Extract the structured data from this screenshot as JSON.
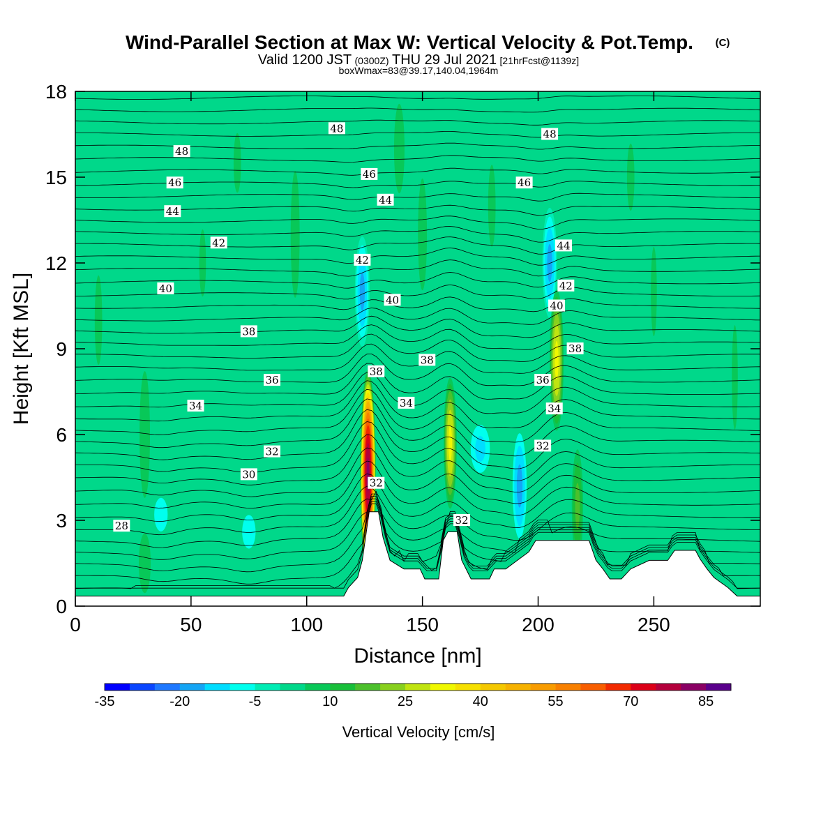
{
  "header": {
    "title": "Wind-Parallel Section at Max W: Vertical Velocity & Pot.Temp.",
    "title_mark": "(C)",
    "valid_a": "Valid 1200 JST",
    "valid_b": "(0300Z)",
    "valid_c": "THU 29 Jul 2021",
    "valid_d": "[21hrFcst@1139z]",
    "box_line": "boxWmax=83@39.17,140.04,1964m"
  },
  "chart_data": {
    "type": "heatmap",
    "xlabel": "Distance [nm]",
    "ylabel": "Height [Kft MSL]",
    "xlim": [
      0,
      296
    ],
    "ylim": [
      0,
      18
    ],
    "x_ticks": [
      0,
      50,
      100,
      150,
      200,
      250
    ],
    "y_ticks": [
      0,
      3,
      6,
      9,
      12,
      15,
      18
    ],
    "x_tick_labels": [
      "0",
      "50",
      "100",
      "150",
      "200",
      "250"
    ],
    "y_tick_labels": [
      "0",
      "3",
      "6",
      "9",
      "12",
      "15",
      "18"
    ],
    "colorbar": {
      "title": "Vertical Velocity [cm/s]",
      "levels_min": -35,
      "levels_step": 5,
      "levels_count": 25,
      "tick_labels": [
        "-35",
        "-20",
        "-5",
        "10",
        "25",
        "40",
        "55",
        "70",
        "85"
      ],
      "colors": [
        "#0000ff",
        "#0a46ff",
        "#1e78ff",
        "#14a5f5",
        "#00ddff",
        "#00ffee",
        "#00ecb4",
        "#00d88a",
        "#08c858",
        "#18bf3a",
        "#4cc02c",
        "#88d01e",
        "#c0e410",
        "#f0f800",
        "#f6e000",
        "#f4c800",
        "#f6b200",
        "#f89c00",
        "#f88000",
        "#f85e00",
        "#f22a00",
        "#dc0018",
        "#b4003c",
        "#8a0064",
        "#5a008c"
      ]
    },
    "terrain_profile": [
      [
        0,
        0.35
      ],
      [
        116,
        0.35
      ],
      [
        118,
        0.65
      ],
      [
        122,
        1.0
      ],
      [
        124,
        1.6
      ],
      [
        127,
        3.3
      ],
      [
        131,
        3.3
      ],
      [
        133,
        2.4
      ],
      [
        136,
        1.6
      ],
      [
        142,
        1.3
      ],
      [
        149,
        1.3
      ],
      [
        151,
        0.95
      ],
      [
        157,
        0.95
      ],
      [
        159,
        2.3
      ],
      [
        161,
        2.6
      ],
      [
        165,
        2.6
      ],
      [
        167,
        1.6
      ],
      [
        171,
        0.95
      ],
      [
        179,
        0.95
      ],
      [
        181,
        1.3
      ],
      [
        186,
        1.3
      ],
      [
        191,
        1.6
      ],
      [
        196,
        1.9
      ],
      [
        199,
        2.3
      ],
      [
        222,
        2.3
      ],
      [
        225,
        1.6
      ],
      [
        228,
        1.3
      ],
      [
        231,
        0.95
      ],
      [
        236,
        0.95
      ],
      [
        240,
        1.3
      ],
      [
        248,
        1.6
      ],
      [
        256,
        1.6
      ],
      [
        259,
        1.95
      ],
      [
        268,
        1.95
      ],
      [
        270,
        1.65
      ],
      [
        273,
        1.3
      ],
      [
        276,
        1.0
      ],
      [
        282,
        0.65
      ],
      [
        286,
        0.35
      ],
      [
        296,
        0.35
      ]
    ],
    "updrafts": [
      {
        "x": 126.5,
        "z": 4.6,
        "peak": 83
      },
      {
        "x": 162,
        "z": 5.7,
        "peak": 34
      },
      {
        "x": 208,
        "z": 8.6,
        "peak": 30
      },
      {
        "x": 217,
        "z": 3.5,
        "peak": 18
      }
    ],
    "downdrafts": [
      {
        "x": 124,
        "z": 11,
        "peak": -20
      },
      {
        "x": 205,
        "z": 12,
        "peak": -20
      },
      {
        "x": 192,
        "z": 4.2,
        "peak": -16
      },
      {
        "x": 175,
        "z": 5.5,
        "peak": -12
      },
      {
        "x": 37,
        "z": 3.2,
        "peak": -7
      },
      {
        "x": 75,
        "z": 2.6,
        "peak": -7
      }
    ],
    "theta_contours": {
      "base": 28,
      "step": 0.5,
      "contour_labels": [
        {
          "text": "48",
          "x": 46,
          "z": 15.9
        },
        {
          "text": "48",
          "x": 113,
          "z": 16.7
        },
        {
          "text": "48",
          "x": 205,
          "z": 16.5
        },
        {
          "text": "46",
          "x": 43,
          "z": 14.8
        },
        {
          "text": "46",
          "x": 127,
          "z": 15.1
        },
        {
          "text": "46",
          "x": 194,
          "z": 14.8
        },
        {
          "text": "44",
          "x": 42,
          "z": 13.8
        },
        {
          "text": "44",
          "x": 134,
          "z": 14.2
        },
        {
          "text": "44",
          "x": 211,
          "z": 12.6
        },
        {
          "text": "42",
          "x": 62,
          "z": 12.7
        },
        {
          "text": "42",
          "x": 124,
          "z": 12.1
        },
        {
          "text": "42",
          "x": 212,
          "z": 11.2
        },
        {
          "text": "40",
          "x": 39,
          "z": 11.1
        },
        {
          "text": "40",
          "x": 137,
          "z": 10.7
        },
        {
          "text": "40",
          "x": 208,
          "z": 10.5
        },
        {
          "text": "38",
          "x": 75,
          "z": 9.6
        },
        {
          "text": "38",
          "x": 130,
          "z": 8.2
        },
        {
          "text": "38",
          "x": 152,
          "z": 8.6
        },
        {
          "text": "38",
          "x": 216,
          "z": 9.0
        },
        {
          "text": "36",
          "x": 85,
          "z": 7.9
        },
        {
          "text": "36",
          "x": 202,
          "z": 7.9
        },
        {
          "text": "34",
          "x": 52,
          "z": 7.0
        },
        {
          "text": "34",
          "x": 143,
          "z": 7.1
        },
        {
          "text": "34",
          "x": 207,
          "z": 6.9
        },
        {
          "text": "32",
          "x": 85,
          "z": 5.4
        },
        {
          "text": "32",
          "x": 202,
          "z": 5.6
        },
        {
          "text": "32",
          "x": 130,
          "z": 4.3
        },
        {
          "text": "32",
          "x": 167,
          "z": 3.0
        },
        {
          "text": "30",
          "x": 75,
          "z": 4.6
        },
        {
          "text": "28",
          "x": 20,
          "z": 2.8
        }
      ]
    }
  }
}
